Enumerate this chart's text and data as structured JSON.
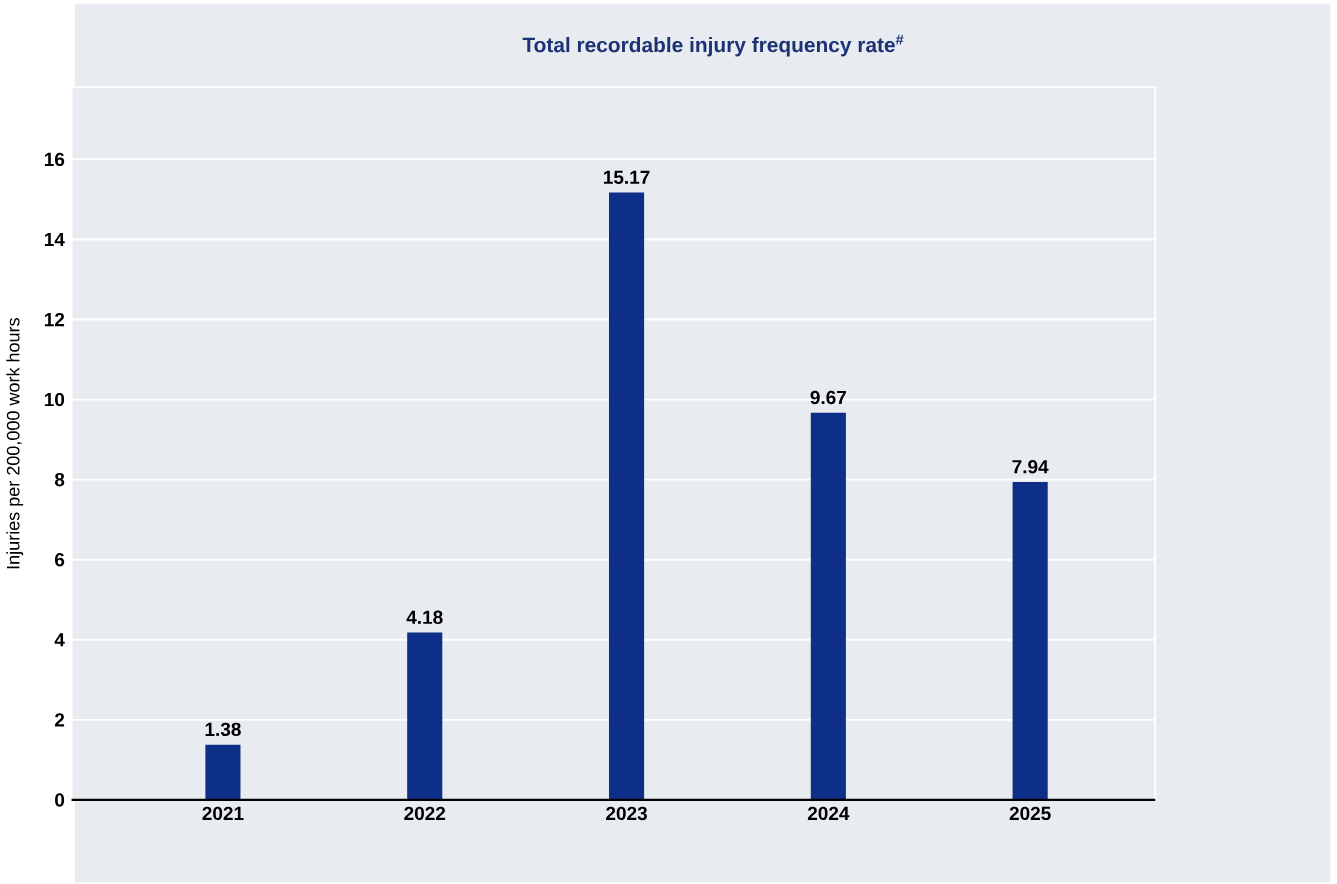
{
  "chart_data": {
    "type": "bar",
    "title": "Total recordable injury frequency rate$^{#}$",
    "ylabel": "Injuries per 200,000 work hours",
    "categories": [
      "2021",
      "2022",
      "2023",
      "2024",
      "2025"
    ],
    "values": [
      1.38,
      4.18,
      15.17,
      9.67,
      7.94
    ],
    "color": "#0e2f87",
    "ylim": [
      0,
      17.8
    ],
    "yticks": [
      0,
      2,
      4,
      6,
      8,
      10,
      12,
      14,
      16
    ],
    "grid": "y",
    "data_labels": true
  }
}
